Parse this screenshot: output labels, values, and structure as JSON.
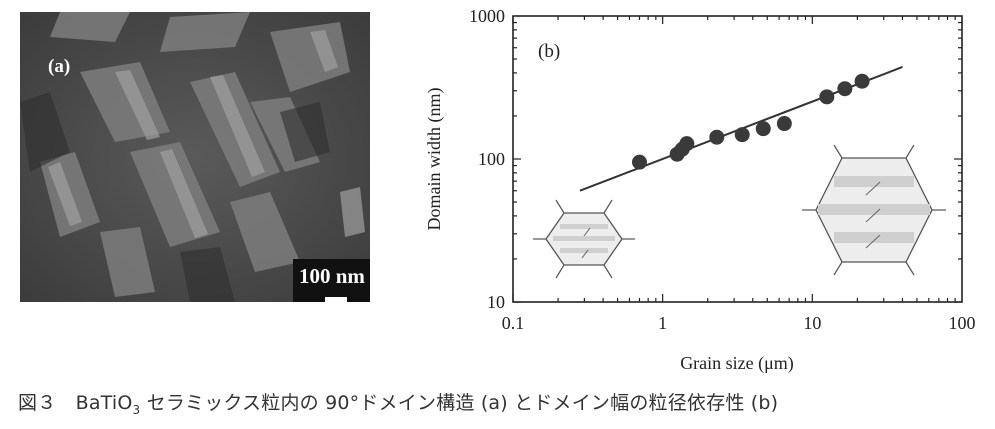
{
  "panel_a": {
    "label": "(a)",
    "scale_bar_text": "100 nm"
  },
  "chart_data": {
    "type": "scatter",
    "panel_label": "(b)",
    "xlabel": "Grain size (μm)",
    "ylabel": "Domain width (nm)",
    "x_scale": "log",
    "y_scale": "log",
    "xlim": [
      0.1,
      100
    ],
    "ylim": [
      10,
      1000
    ],
    "x_ticks": [
      0.1,
      1,
      10,
      100
    ],
    "x_tick_labels": [
      "0.1",
      "1",
      "10",
      "100"
    ],
    "y_ticks": [
      10,
      100,
      1000
    ],
    "y_tick_labels": [
      "10",
      "100",
      "1000"
    ],
    "grid": false,
    "series": [
      {
        "points": [
          {
            "x": 0.7,
            "y": 95
          },
          {
            "x": 1.25,
            "y": 108
          },
          {
            "x": 1.35,
            "y": 117
          },
          {
            "x": 1.45,
            "y": 128
          },
          {
            "x": 2.3,
            "y": 142
          },
          {
            "x": 3.4,
            "y": 148
          },
          {
            "x": 4.7,
            "y": 163
          },
          {
            "x": 6.5,
            "y": 177
          },
          {
            "x": 12.5,
            "y": 272
          },
          {
            "x": 16.5,
            "y": 310
          },
          {
            "x": 21.5,
            "y": 350
          }
        ]
      }
    ],
    "fit_line": {
      "x": [
        0.28,
        40
      ],
      "y": [
        60,
        440
      ]
    },
    "marker_color": "#3a3a3a",
    "line_color": "#333333"
  },
  "caption": {
    "prefix": "図３　BaTiO",
    "subscript": "3",
    "suffix": " セラミックス粒内の 90°ドメイン構造 (a) とドメイン幅の粒径依存性 (b)"
  }
}
